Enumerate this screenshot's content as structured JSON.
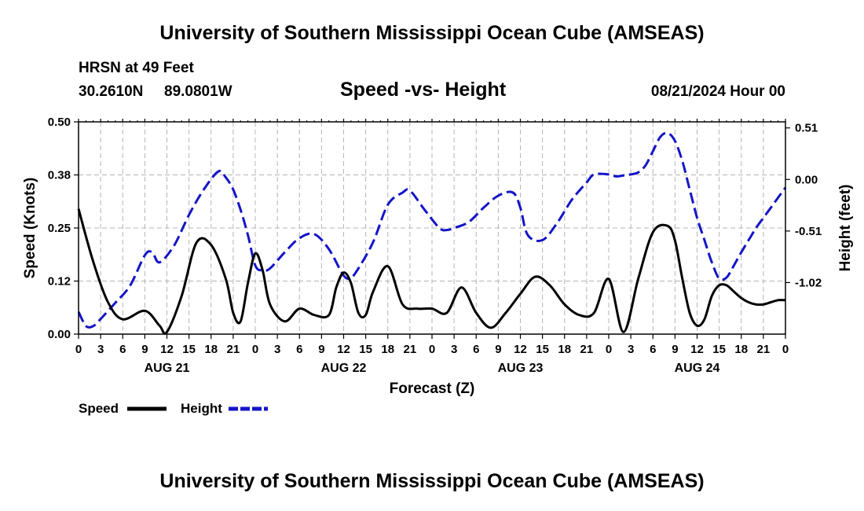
{
  "header": {
    "title": "University of Southern Mississippi Ocean Cube (AMSEAS)",
    "station": "HRSN at 49 Feet",
    "latitude": "30.2610N",
    "longitude": "89.0801W",
    "chart_title": "Speed -vs- Height",
    "run_time": "08/21/2024 Hour 00"
  },
  "footer": {
    "title": "University of Southern Mississippi Ocean Cube (AMSEAS)"
  },
  "colors": {
    "speed": "#000000",
    "height": "#1414c8",
    "grid": "#b4b4b4"
  },
  "chart_data": {
    "type": "line",
    "title": "Speed -vs- Height",
    "xlabel": "Forecast (Z)",
    "ylabel": "Speed (Knots)",
    "y2label": "Height (feet)",
    "x_range": [
      0,
      96
    ],
    "ylim": [
      0,
      0.5
    ],
    "y_ticks": [
      "0.00",
      "0.12",
      "0.25",
      "0.38",
      "0.50"
    ],
    "y_tick_values": [
      0,
      0.125,
      0.25,
      0.375,
      0.5
    ],
    "y2lim": [
      -1.53,
      0.57
    ],
    "y2_ticks": [
      "-1.02",
      "-0.51",
      "0.00",
      "0.51"
    ],
    "y2_tick_values": [
      -1.02,
      -0.51,
      0,
      0.51
    ],
    "x_ticks": [
      0,
      3,
      6,
      9,
      12,
      15,
      18,
      21,
      24,
      27,
      30,
      33,
      36,
      39,
      42,
      45,
      48,
      51,
      54,
      57,
      60,
      63,
      66,
      69,
      72,
      75,
      78,
      81,
      84,
      87,
      90,
      93,
      96
    ],
    "x_tick_labels": [
      "0",
      "3",
      "6",
      "9",
      "12",
      "15",
      "18",
      "21",
      "0",
      "3",
      "6",
      "9",
      "12",
      "15",
      "18",
      "21",
      "0",
      "3",
      "6",
      "9",
      "12",
      "15",
      "18",
      "21",
      "0",
      "3",
      "6",
      "9",
      "12",
      "15",
      "18",
      "21",
      "0"
    ],
    "day_labels": [
      {
        "x": 12,
        "label": "AUG 21"
      },
      {
        "x": 36,
        "label": "AUG 22"
      },
      {
        "x": 60,
        "label": "AUG 23"
      },
      {
        "x": 84,
        "label": "AUG 24"
      }
    ],
    "legend": {
      "position": "bottom-left"
    },
    "series": [
      {
        "name": "Speed",
        "axis": "left",
        "style": "solid",
        "x": [
          0,
          2,
          4,
          6,
          9,
          11,
          12,
          14,
          16,
          18,
          20,
          21,
          22,
          23,
          24,
          25,
          26,
          28,
          30,
          32,
          34,
          35,
          36,
          37,
          38,
          39,
          40,
          42,
          44,
          46,
          48,
          50,
          52,
          54,
          56,
          58,
          60,
          62,
          64,
          66,
          68,
          70,
          72,
          74,
          76,
          78,
          80,
          81,
          82,
          83,
          84,
          85,
          86,
          87,
          88,
          89,
          90,
          91,
          92,
          93,
          94,
          95,
          96
        ],
        "values": [
          0.295,
          0.17,
          0.075,
          0.035,
          0.055,
          0.02,
          0.005,
          0.09,
          0.215,
          0.21,
          0.13,
          0.05,
          0.03,
          0.12,
          0.19,
          0.15,
          0.07,
          0.03,
          0.06,
          0.045,
          0.045,
          0.11,
          0.145,
          0.12,
          0.05,
          0.045,
          0.1,
          0.16,
          0.07,
          0.06,
          0.06,
          0.05,
          0.11,
          0.05,
          0.015,
          0.05,
          0.095,
          0.135,
          0.115,
          0.07,
          0.045,
          0.05,
          0.13,
          0.005,
          0.13,
          0.24,
          0.255,
          0.22,
          0.13,
          0.05,
          0.02,
          0.035,
          0.09,
          0.115,
          0.115,
          0.1,
          0.085,
          0.075,
          0.07,
          0.07,
          0.075,
          0.08,
          0.08
        ]
      },
      {
        "name": "Height",
        "axis": "right",
        "style": "dashed",
        "x": [
          0,
          1,
          2,
          3,
          5,
          7,
          9,
          10,
          11,
          13,
          15,
          17,
          19,
          20,
          21,
          22,
          23,
          24,
          25,
          26,
          28,
          30,
          32,
          34,
          36,
          37,
          38,
          40,
          42,
          44,
          45,
          47,
          49,
          50,
          51,
          53,
          55,
          57,
          59,
          60,
          61,
          63,
          65,
          67,
          69,
          70,
          72,
          73,
          74,
          75,
          76,
          77,
          78,
          79,
          80,
          81,
          82,
          83,
          84,
          85,
          86,
          87,
          88,
          89,
          90,
          91,
          92,
          93,
          94,
          95,
          96
        ],
        "values": [
          -1.31,
          -1.45,
          -1.45,
          -1.38,
          -1.22,
          -1.05,
          -0.75,
          -0.72,
          -0.82,
          -0.65,
          -0.35,
          -0.1,
          0.08,
          0.02,
          -0.1,
          -0.3,
          -0.55,
          -0.85,
          -0.9,
          -0.88,
          -0.72,
          -0.58,
          -0.54,
          -0.69,
          -0.95,
          -0.97,
          -0.88,
          -0.62,
          -0.25,
          -0.13,
          -0.11,
          -0.3,
          -0.48,
          -0.5,
          -0.48,
          -0.42,
          -0.28,
          -0.16,
          -0.13,
          -0.28,
          -0.55,
          -0.6,
          -0.43,
          -0.2,
          -0.03,
          0.05,
          0.05,
          0.03,
          0.04,
          0.05,
          0.07,
          0.14,
          0.28,
          0.42,
          0.46,
          0.38,
          0.18,
          -0.1,
          -0.38,
          -0.6,
          -0.82,
          -0.98,
          -0.97,
          -0.85,
          -0.72,
          -0.6,
          -0.48,
          -0.38,
          -0.28,
          -0.18,
          -0.08
        ]
      }
    ]
  }
}
